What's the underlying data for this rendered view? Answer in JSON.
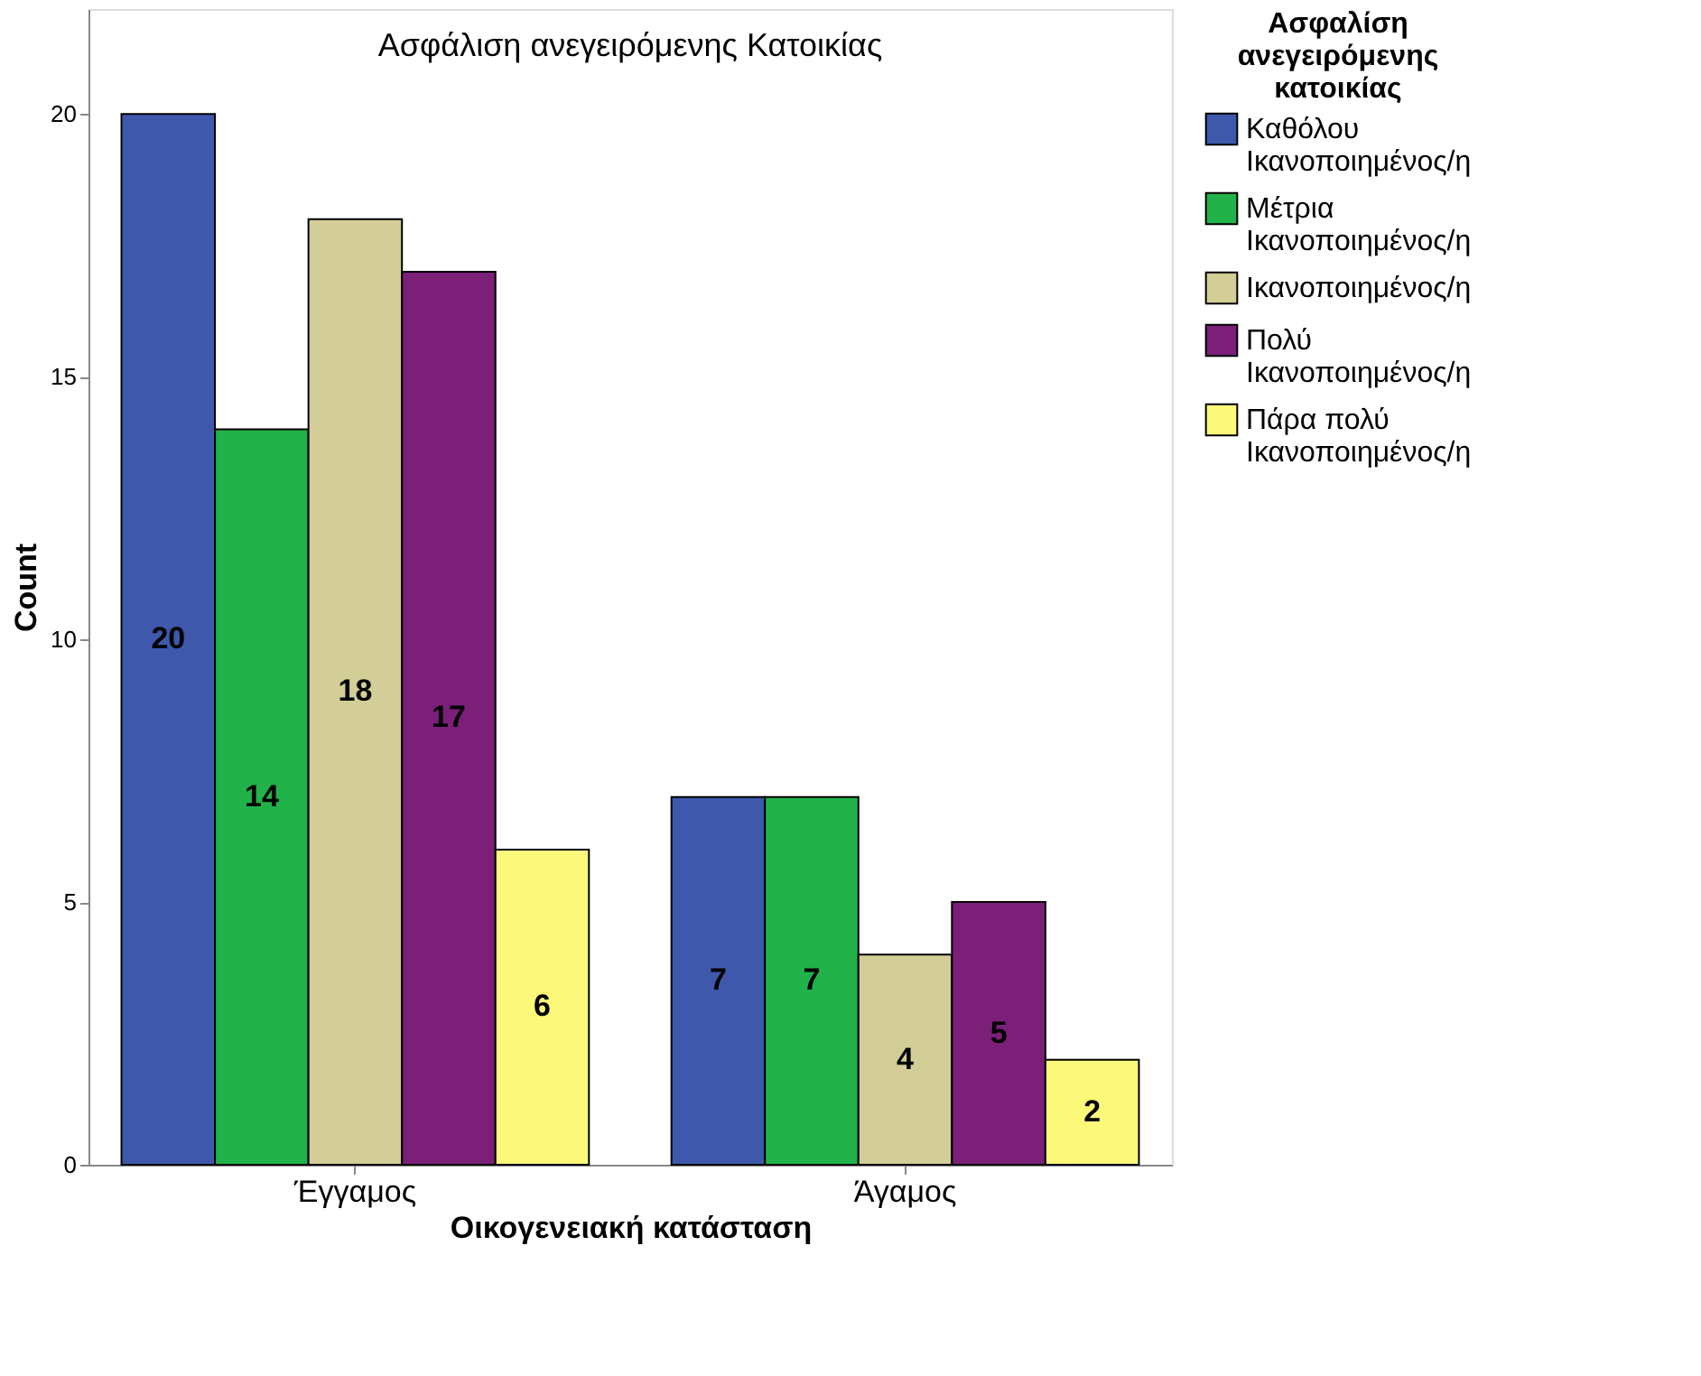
{
  "chart_data": {
    "type": "bar",
    "title": "Ασφάλιση ανεγειρόμενης Κατοικίας",
    "xlabel": "Οικογενειακή κατάσταση",
    "ylabel": "Count",
    "legend_title": "Ασφαλίση ανεγειρόμενης κατοικίας",
    "categories": [
      "Έγγαμος",
      "Άγαμος"
    ],
    "series": [
      {
        "name": "Καθόλου Ικανοποιημένος/η",
        "color": "#3e58ac",
        "values": [
          20,
          7
        ]
      },
      {
        "name": "Μέτρια Ικανοποιημένος/η",
        "color": "#21b24a",
        "values": [
          14,
          7
        ]
      },
      {
        "name": "Ικανοποιημένος/η",
        "color": "#d3cd98",
        "values": [
          18,
          4
        ]
      },
      {
        "name": "Πολύ Ικανοποιημένος/η",
        "color": "#7b1f78",
        "values": [
          17,
          5
        ]
      },
      {
        "name": "Πάρα πολύ Ικανοποιημένος/η",
        "color": "#fbf87a",
        "values": [
          6,
          2
        ]
      }
    ],
    "ylim": [
      0,
      22
    ],
    "yticks": [
      0,
      5,
      10,
      15,
      20
    ],
    "grid": false,
    "legend": "right",
    "data_labels": true
  }
}
